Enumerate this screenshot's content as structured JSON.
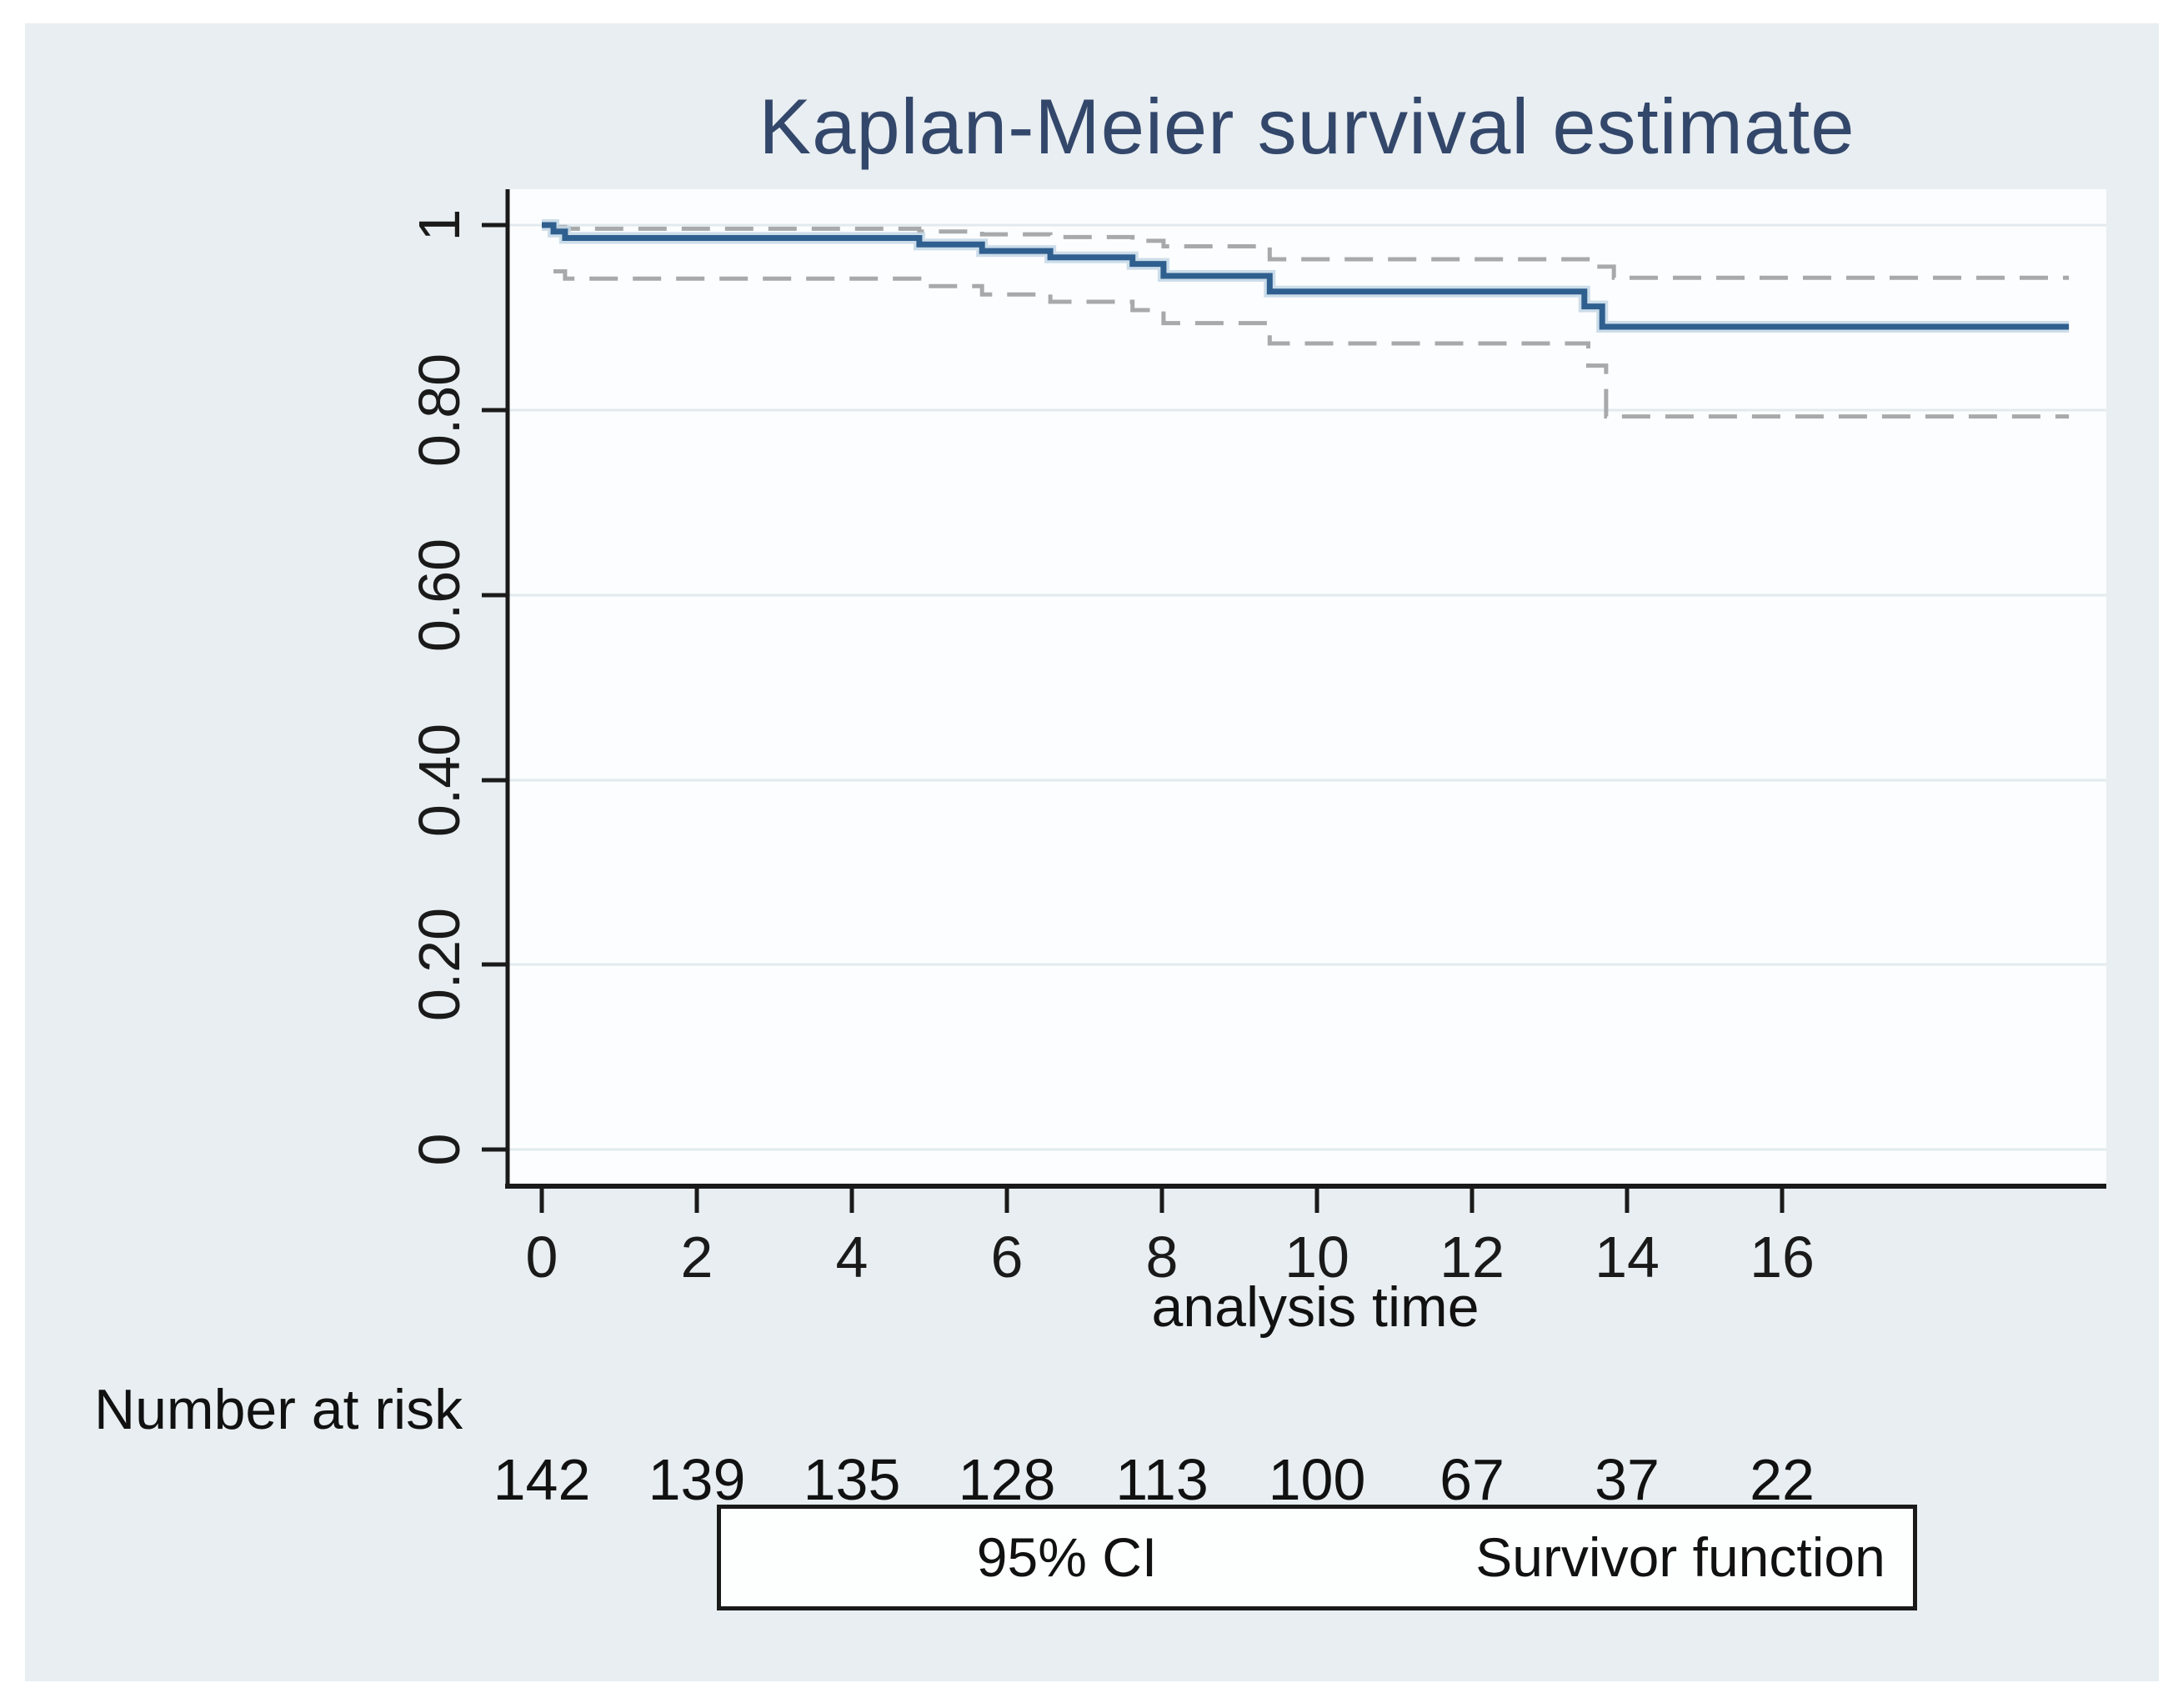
{
  "figure": {
    "title": "Kaplan-Meier survival estimate",
    "background_color": "#e8eef1",
    "plot_background_color": "#fcfdfe",
    "title_color": "#33476b",
    "axis_color": "#1a1a1a",
    "gridline_color": "#e2eaee"
  },
  "axes": {
    "y": {
      "tick_labels": [
        "1",
        "0.80",
        "0.60",
        "0.40",
        "0.20",
        "0"
      ],
      "tick_values": [
        1,
        0.8,
        0.6,
        0.4,
        0.2,
        0
      ]
    },
    "x": {
      "label": "analysis time",
      "tick_labels": [
        "0",
        "2",
        "4",
        "6",
        "8",
        "10",
        "12",
        "14",
        "16"
      ],
      "tick_values": [
        0,
        2,
        4,
        6,
        8,
        10,
        12,
        14,
        16
      ]
    }
  },
  "risk_table": {
    "label": "Number at risk",
    "counts": [
      "142",
      "139",
      "135",
      "128",
      "113",
      "100",
      "67",
      "37",
      "22"
    ]
  },
  "legend": {
    "ci_label": "95% CI",
    "survivor_label": "Survivor function",
    "ci_color": "#a7a9aa",
    "survivor_color": "#2f5f8e",
    "survivor_halo_color": "#c3d7e6"
  },
  "chart_data": {
    "type": "line",
    "subtype": "kaplan-meier-step",
    "title": "Kaplan-Meier survival estimate",
    "xlabel": "analysis time",
    "ylabel": "",
    "xlim": [
      0,
      20.2
    ],
    "ylim": [
      0,
      1.04
    ],
    "grid": true,
    "legend_position": "bottom",
    "series": [
      {
        "name": "Survivor function",
        "style": "solid",
        "color": "#2f5f8e",
        "step": true,
        "points": [
          [
            0,
            1.0
          ],
          [
            0.15,
            0.993
          ],
          [
            0.3,
            0.986
          ],
          [
            4.87,
            0.979
          ],
          [
            5.68,
            0.972
          ],
          [
            6.56,
            0.965
          ],
          [
            7.62,
            0.958
          ],
          [
            8.02,
            0.945
          ],
          [
            9.39,
            0.928
          ],
          [
            13.45,
            0.912
          ],
          [
            13.68,
            0.89
          ],
          [
            19.7,
            0.89
          ]
        ]
      },
      {
        "name": "95% CI upper",
        "style": "dashed",
        "color": "#a7a9aa",
        "step": true,
        "points": [
          [
            0.15,
            0.998
          ],
          [
            0.3,
            0.996
          ],
          [
            4.87,
            0.993
          ],
          [
            5.68,
            0.99
          ],
          [
            6.56,
            0.987
          ],
          [
            7.62,
            0.983
          ],
          [
            8.02,
            0.977
          ],
          [
            9.39,
            0.963
          ],
          [
            13.6,
            0.955
          ],
          [
            13.83,
            0.943
          ],
          [
            19.7,
            0.943
          ]
        ]
      },
      {
        "name": "95% CI lower",
        "style": "dashed",
        "color": "#a7a9aa",
        "step": true,
        "points": [
          [
            0.15,
            0.95
          ],
          [
            0.3,
            0.942
          ],
          [
            4.87,
            0.934
          ],
          [
            5.68,
            0.925
          ],
          [
            6.56,
            0.917
          ],
          [
            7.62,
            0.908
          ],
          [
            8.02,
            0.894
          ],
          [
            9.39,
            0.872
          ],
          [
            13.5,
            0.848
          ],
          [
            13.73,
            0.793
          ],
          [
            19.7,
            0.793
          ]
        ]
      }
    ],
    "number_at_risk": {
      "times": [
        0,
        2,
        4,
        6,
        8,
        10,
        12,
        14,
        16
      ],
      "counts": [
        142,
        139,
        135,
        128,
        113,
        100,
        67,
        37,
        22
      ]
    }
  }
}
